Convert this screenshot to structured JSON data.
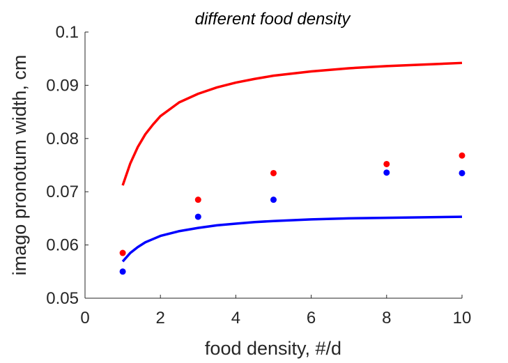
{
  "chart_data": {
    "type": "scatter",
    "title": "different food density",
    "xlabel": "food density, #/d",
    "ylabel": "imago pronotum width, cm",
    "xlim": [
      0,
      10
    ],
    "ylim": [
      0.05,
      0.1
    ],
    "xticks": [
      0,
      2,
      4,
      6,
      8,
      10
    ],
    "xtick_labels": [
      "0",
      "2",
      "4",
      "6",
      "8",
      "10"
    ],
    "yticks": [
      0.05,
      0.06,
      0.07,
      0.08,
      0.09,
      0.1
    ],
    "ytick_labels": [
      "0.05",
      "0.06",
      "0.07",
      "0.08",
      "0.09",
      "0.1"
    ],
    "grid": false,
    "series": [
      {
        "kind": "points",
        "color": "#ff0000",
        "x": [
          1,
          3,
          5,
          8,
          10
        ],
        "y": [
          0.0585,
          0.0685,
          0.0735,
          0.0752,
          0.0768
        ]
      },
      {
        "kind": "points",
        "color": "#0000ff",
        "x": [
          1,
          3,
          5,
          8,
          10
        ],
        "y": [
          0.055,
          0.0653,
          0.0685,
          0.0736,
          0.0735
        ]
      },
      {
        "kind": "line",
        "color": "#ff0000",
        "x": [
          1,
          1.2,
          1.4,
          1.6,
          1.8,
          2,
          2.5,
          3,
          3.5,
          4,
          4.5,
          5,
          6,
          7,
          8,
          9,
          10
        ],
        "y": [
          0.0712,
          0.0753,
          0.0784,
          0.0808,
          0.0826,
          0.0842,
          0.0868,
          0.0884,
          0.0896,
          0.0905,
          0.0912,
          0.0918,
          0.0926,
          0.0932,
          0.0936,
          0.0939,
          0.0942
        ]
      },
      {
        "kind": "line",
        "color": "#0000ff",
        "x": [
          1,
          1.2,
          1.4,
          1.6,
          1.8,
          2,
          2.5,
          3,
          3.5,
          4,
          4.5,
          5,
          6,
          7,
          8,
          9,
          10
        ],
        "y": [
          0.0569,
          0.0585,
          0.0596,
          0.0605,
          0.0611,
          0.0617,
          0.0626,
          0.0632,
          0.0637,
          0.064,
          0.0643,
          0.0645,
          0.0648,
          0.065,
          0.0651,
          0.0652,
          0.0653
        ]
      }
    ]
  }
}
